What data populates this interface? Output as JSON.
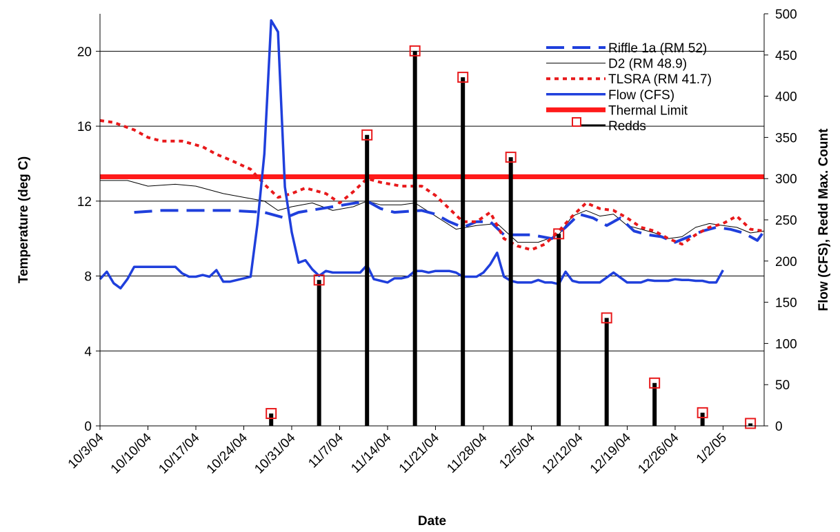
{
  "chart_data": {
    "type": "line",
    "xlabel": "Date",
    "ylabel_left": "Temperature (deg C)",
    "ylabel_right": "Flow (CFS), Redd Max. Count",
    "x_range": [
      "2004-10-03",
      "2005-01-08"
    ],
    "ylim_left": [
      0,
      22
    ],
    "ylim_right": [
      0,
      500
    ],
    "grid": true,
    "legend_position": "top-right",
    "x_tick_labels": [
      "10/3/04",
      "10/10/04",
      "10/17/04",
      "10/24/04",
      "10/31/04",
      "11/7/04",
      "11/14/04",
      "11/21/04",
      "11/28/04",
      "12/5/04",
      "12/12/04",
      "12/19/04",
      "12/26/04",
      "1/2/05"
    ],
    "y_left_ticks": [
      "0",
      "4",
      "8",
      "12",
      "16",
      "20"
    ],
    "y_right_ticks": [
      "0",
      "50",
      "100",
      "150",
      "200",
      "250",
      "300",
      "350",
      "400",
      "450",
      "500"
    ],
    "legend": [
      {
        "name": "Riffle 1a (RM 52)",
        "color": "#1f3fdc",
        "style": "dashed-thick"
      },
      {
        "name": "D2 (RM 48.9)",
        "color": "#000000",
        "style": "solid-thin"
      },
      {
        "name": "TLSRA (RM 41.7)",
        "color": "#e8191b",
        "style": "dotted"
      },
      {
        "name": "Flow  (CFS)",
        "color": "#1f3fdc",
        "style": "solid"
      },
      {
        "name": "Thermal Limit",
        "color": "#ff1a1a",
        "style": "solid-thick"
      },
      {
        "name": "Redds",
        "color": "#000000",
        "marker_color": "#e8191b",
        "style": "bars-with-square-markers"
      }
    ],
    "series": [
      {
        "name": "Riffle 1a (RM 52)",
        "axis": "left",
        "points": [
          [
            "2004-10-03",
            null
          ],
          [
            "2004-10-08",
            11.4
          ],
          [
            "2004-10-12",
            11.5
          ],
          [
            "2004-10-17",
            11.5
          ],
          [
            "2004-10-22",
            11.5
          ],
          [
            "2004-10-27",
            11.4
          ],
          [
            "2004-10-30",
            11.1
          ],
          [
            "2004-11-01",
            11.4
          ],
          [
            "2004-11-11",
            12.0
          ],
          [
            "2004-11-13",
            11.6
          ],
          [
            "2004-11-15",
            11.4
          ],
          [
            "2004-11-19",
            11.5
          ],
          [
            "2004-11-21",
            11.3
          ],
          [
            "2004-11-23",
            10.9
          ],
          [
            "2004-11-25",
            10.6
          ],
          [
            "2004-11-27",
            10.9
          ],
          [
            "2004-11-29",
            10.9
          ],
          [
            "2004-12-01",
            10.2
          ],
          [
            "2004-12-03",
            10.2
          ],
          [
            "2004-12-05",
            10.2
          ],
          [
            "2004-12-08",
            10.0
          ],
          [
            "2004-12-10",
            10.6
          ],
          [
            "2004-12-12",
            11.3
          ],
          [
            "2004-12-14",
            11.1
          ],
          [
            "2004-12-16",
            10.7
          ],
          [
            "2004-12-18",
            11.1
          ],
          [
            "2004-12-20",
            10.4
          ],
          [
            "2004-12-22",
            10.2
          ],
          [
            "2004-12-24",
            10.1
          ],
          [
            "2004-12-26",
            9.8
          ],
          [
            "2004-12-28",
            10.1
          ],
          [
            "2004-12-30",
            10.4
          ],
          [
            "2005-01-01",
            10.6
          ],
          [
            "2005-01-03",
            10.5
          ],
          [
            "2005-01-05",
            10.3
          ],
          [
            "2005-01-07",
            9.9
          ],
          [
            "2005-01-08",
            10.4
          ]
        ]
      },
      {
        "name": "D2 (RM 48.9)",
        "axis": "left",
        "points": [
          [
            "2004-10-03",
            13.1
          ],
          [
            "2004-10-07",
            13.1
          ],
          [
            "2004-10-10",
            12.8
          ],
          [
            "2004-10-14",
            12.9
          ],
          [
            "2004-10-17",
            12.8
          ],
          [
            "2004-10-19",
            12.6
          ],
          [
            "2004-10-21",
            12.4
          ],
          [
            "2004-10-24",
            12.2
          ],
          [
            "2004-10-27",
            12.0
          ],
          [
            "2004-10-29",
            11.5
          ],
          [
            "2004-10-31",
            11.7
          ],
          [
            "2004-11-03",
            11.9
          ],
          [
            "2004-11-06",
            11.5
          ],
          [
            "2004-11-09",
            11.7
          ],
          [
            "2004-11-11",
            12.0
          ],
          [
            "2004-11-13",
            11.8
          ],
          [
            "2004-11-16",
            11.8
          ],
          [
            "2004-11-18",
            11.9
          ],
          [
            "2004-11-21",
            11.2
          ],
          [
            "2004-11-24",
            10.5
          ],
          [
            "2004-11-27",
            10.7
          ],
          [
            "2004-11-30",
            10.8
          ],
          [
            "2004-12-03",
            9.8
          ],
          [
            "2004-12-06",
            9.8
          ],
          [
            "2004-12-09",
            10.2
          ],
          [
            "2004-12-11",
            11.2
          ],
          [
            "2004-12-13",
            11.5
          ],
          [
            "2004-12-15",
            11.2
          ],
          [
            "2004-12-17",
            11.3
          ],
          [
            "2004-12-19",
            10.7
          ],
          [
            "2004-12-21",
            10.5
          ],
          [
            "2004-12-23",
            10.3
          ],
          [
            "2004-12-25",
            10.0
          ],
          [
            "2004-12-27",
            10.1
          ],
          [
            "2004-12-29",
            10.6
          ],
          [
            "2004-12-31",
            10.8
          ],
          [
            "2005-01-02",
            10.7
          ],
          [
            "2005-01-04",
            10.6
          ],
          [
            "2005-01-06",
            10.3
          ],
          [
            "2005-01-08",
            10.4
          ]
        ]
      },
      {
        "name": "TLSRA (RM 41.7)",
        "axis": "left",
        "points": [
          [
            "2004-10-03",
            16.3
          ],
          [
            "2004-10-05",
            16.2
          ],
          [
            "2004-10-08",
            15.8
          ],
          [
            "2004-10-10",
            15.4
          ],
          [
            "2004-10-12",
            15.2
          ],
          [
            "2004-10-15",
            15.2
          ],
          [
            "2004-10-18",
            14.9
          ],
          [
            "2004-10-20",
            14.5
          ],
          [
            "2004-10-22",
            14.2
          ],
          [
            "2004-10-25",
            13.7
          ],
          [
            "2004-10-27",
            12.9
          ],
          [
            "2004-10-29",
            12.2
          ],
          [
            "2004-10-31",
            12.4
          ],
          [
            "2004-11-02",
            12.7
          ],
          [
            "2004-11-05",
            12.4
          ],
          [
            "2004-11-07",
            11.9
          ],
          [
            "2004-11-09",
            12.5
          ],
          [
            "2004-11-11",
            13.2
          ],
          [
            "2004-11-13",
            13.0
          ],
          [
            "2004-11-16",
            12.8
          ],
          [
            "2004-11-19",
            12.8
          ],
          [
            "2004-11-21",
            12.3
          ],
          [
            "2004-11-23",
            11.6
          ],
          [
            "2004-11-25",
            10.9
          ],
          [
            "2004-11-27",
            10.9
          ],
          [
            "2004-11-29",
            11.4
          ],
          [
            "2004-12-01",
            10.0
          ],
          [
            "2004-12-03",
            9.6
          ],
          [
            "2004-12-05",
            9.4
          ],
          [
            "2004-12-07",
            9.7
          ],
          [
            "2004-12-09",
            10.4
          ],
          [
            "2004-12-11",
            11.2
          ],
          [
            "2004-12-13",
            11.9
          ],
          [
            "2004-12-15",
            11.6
          ],
          [
            "2004-12-17",
            11.5
          ],
          [
            "2004-12-19",
            11.1
          ],
          [
            "2004-12-21",
            10.6
          ],
          [
            "2004-12-23",
            10.4
          ],
          [
            "2004-12-25",
            10.0
          ],
          [
            "2004-12-27",
            9.7
          ],
          [
            "2004-12-29",
            10.2
          ],
          [
            "2004-12-31",
            10.6
          ],
          [
            "2005-01-02",
            10.8
          ],
          [
            "2005-01-04",
            11.2
          ],
          [
            "2005-01-06",
            10.5
          ],
          [
            "2005-01-08",
            10.4
          ]
        ]
      },
      {
        "name": "Flow  (CFS)",
        "axis": "right",
        "points": [
          [
            "2004-10-03",
            178
          ],
          [
            "2004-10-04",
            187
          ],
          [
            "2004-10-05",
            173
          ],
          [
            "2004-10-06",
            167
          ],
          [
            "2004-10-07",
            178
          ],
          [
            "2004-10-08",
            193
          ],
          [
            "2004-10-09",
            193
          ],
          [
            "2004-10-10",
            193
          ],
          [
            "2004-10-11",
            193
          ],
          [
            "2004-10-12",
            193
          ],
          [
            "2004-10-13",
            193
          ],
          [
            "2004-10-14",
            193
          ],
          [
            "2004-10-15",
            185
          ],
          [
            "2004-10-16",
            181
          ],
          [
            "2004-10-17",
            181
          ],
          [
            "2004-10-18",
            183
          ],
          [
            "2004-10-19",
            181
          ],
          [
            "2004-10-20",
            189
          ],
          [
            "2004-10-21",
            175
          ],
          [
            "2004-10-22",
            175
          ],
          [
            "2004-10-23",
            177
          ],
          [
            "2004-10-24",
            179
          ],
          [
            "2004-10-25",
            181
          ],
          [
            "2004-10-26",
            245
          ],
          [
            "2004-10-27",
            330
          ],
          [
            "2004-10-28",
            492
          ],
          [
            "2004-10-29",
            478
          ],
          [
            "2004-10-30",
            290
          ],
          [
            "2004-10-31",
            235
          ],
          [
            "2004-11-01",
            198
          ],
          [
            "2004-11-02",
            201
          ],
          [
            "2004-11-03",
            190
          ],
          [
            "2004-11-04",
            182
          ],
          [
            "2004-11-05",
            188
          ],
          [
            "2004-11-06",
            186
          ],
          [
            "2004-11-07",
            186
          ],
          [
            "2004-11-08",
            186
          ],
          [
            "2004-11-09",
            186
          ],
          [
            "2004-11-10",
            186
          ],
          [
            "2004-11-11",
            195
          ],
          [
            "2004-11-12",
            178
          ],
          [
            "2004-11-13",
            176
          ],
          [
            "2004-11-14",
            174
          ],
          [
            "2004-11-15",
            179
          ],
          [
            "2004-11-16",
            179
          ],
          [
            "2004-11-17",
            181
          ],
          [
            "2004-11-18",
            188
          ],
          [
            "2004-11-19",
            188
          ],
          [
            "2004-11-20",
            186
          ],
          [
            "2004-11-21",
            188
          ],
          [
            "2004-11-22",
            188
          ],
          [
            "2004-11-23",
            188
          ],
          [
            "2004-11-24",
            186
          ],
          [
            "2004-11-25",
            181
          ],
          [
            "2004-11-26",
            181
          ],
          [
            "2004-11-27",
            181
          ],
          [
            "2004-11-28",
            186
          ],
          [
            "2004-11-29",
            196
          ],
          [
            "2004-11-30",
            210
          ],
          [
            "2004-12-01",
            181
          ],
          [
            "2004-12-02",
            176
          ],
          [
            "2004-12-03",
            174
          ],
          [
            "2004-12-04",
            174
          ],
          [
            "2004-12-05",
            174
          ],
          [
            "2004-12-06",
            177
          ],
          [
            "2004-12-07",
            174
          ],
          [
            "2004-12-08",
            174
          ],
          [
            "2004-12-09",
            172
          ],
          [
            "2004-12-10",
            187
          ],
          [
            "2004-12-11",
            176
          ],
          [
            "2004-12-12",
            174
          ],
          [
            "2004-12-13",
            174
          ],
          [
            "2004-12-14",
            174
          ],
          [
            "2004-12-15",
            174
          ],
          [
            "2004-12-16",
            180
          ],
          [
            "2004-12-17",
            186
          ],
          [
            "2004-12-18",
            180
          ],
          [
            "2004-12-19",
            174
          ],
          [
            "2004-12-20",
            174
          ],
          [
            "2004-12-21",
            174
          ],
          [
            "2004-12-22",
            177
          ],
          [
            "2004-12-23",
            176
          ],
          [
            "2004-12-24",
            176
          ],
          [
            "2004-12-25",
            176
          ],
          [
            "2004-12-26",
            178
          ],
          [
            "2004-12-27",
            177
          ],
          [
            "2004-12-28",
            177
          ],
          [
            "2004-12-29",
            176
          ],
          [
            "2004-12-30",
            176
          ],
          [
            "2004-12-31",
            174
          ],
          [
            "2005-01-01",
            174
          ],
          [
            "2005-01-02",
            189
          ]
        ]
      },
      {
        "name": "Thermal Limit",
        "axis": "left",
        "points": [
          [
            "2004-10-03",
            13.3
          ],
          [
            "2005-01-08",
            13.3
          ]
        ]
      }
    ],
    "redds": {
      "axis": "right",
      "points": [
        [
          "2004-10-28",
          15
        ],
        [
          "2004-11-04",
          177
        ],
        [
          "2004-11-11",
          353
        ],
        [
          "2004-11-18",
          455
        ],
        [
          "2004-11-25",
          423
        ],
        [
          "2004-12-02",
          326
        ],
        [
          "2004-12-09",
          233
        ],
        [
          "2004-12-16",
          131
        ],
        [
          "2004-12-23",
          52
        ],
        [
          "2004-12-30",
          16
        ],
        [
          "2005-01-06",
          3
        ]
      ]
    }
  }
}
